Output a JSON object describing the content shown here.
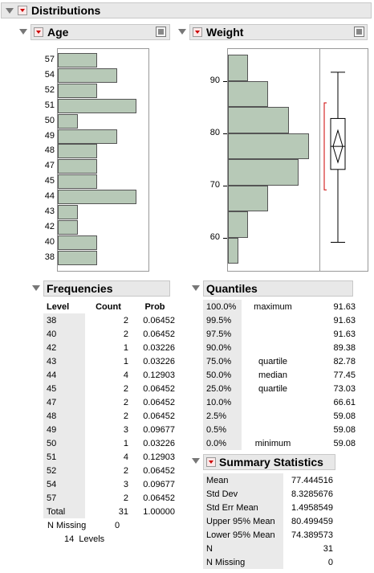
{
  "top_title": "Distributions",
  "age": {
    "title": "Age",
    "ticks": [
      "57",
      "54",
      "52",
      "51",
      "50",
      "49",
      "48",
      "47",
      "45",
      "44",
      "43",
      "42",
      "40",
      "38"
    ],
    "chart_data": {
      "type": "bar",
      "orientation": "horizontal",
      "categories": [
        "57",
        "54",
        "52",
        "51",
        "50",
        "49",
        "48",
        "47",
        "45",
        "44",
        "43",
        "42",
        "40",
        "38"
      ],
      "values": [
        2,
        3,
        2,
        4,
        1,
        3,
        2,
        2,
        2,
        4,
        1,
        1,
        2,
        2
      ]
    }
  },
  "weight": {
    "title": "Weight",
    "ticks": [
      "90",
      "80",
      "70",
      "60"
    ],
    "chart_data": {
      "type": "bar",
      "orientation": "horizontal",
      "bins": [
        [
          55,
          60
        ],
        [
          60,
          65
        ],
        [
          65,
          70
        ],
        [
          70,
          75
        ],
        [
          75,
          80
        ],
        [
          80,
          85
        ],
        [
          85,
          90
        ],
        [
          90,
          95
        ]
      ],
      "values": [
        1,
        2,
        4,
        7,
        8,
        6,
        4,
        2
      ],
      "ylim": [
        55,
        95
      ],
      "boxplot": {
        "min": 59.08,
        "q1": 73.03,
        "median": 77.45,
        "q3": 82.78,
        "max": 91.63,
        "mean": 77.444516,
        "ci_low": 74.389573,
        "ci_high": 80.499459
      }
    }
  },
  "frequencies": {
    "title": "Frequencies",
    "headers": [
      "Level",
      "Count",
      "Prob"
    ],
    "rows": [
      [
        "38",
        "2",
        "0.06452"
      ],
      [
        "40",
        "2",
        "0.06452"
      ],
      [
        "42",
        "1",
        "0.03226"
      ],
      [
        "43",
        "1",
        "0.03226"
      ],
      [
        "44",
        "4",
        "0.12903"
      ],
      [
        "45",
        "2",
        "0.06452"
      ],
      [
        "47",
        "2",
        "0.06452"
      ],
      [
        "48",
        "2",
        "0.06452"
      ],
      [
        "49",
        "3",
        "0.09677"
      ],
      [
        "50",
        "1",
        "0.03226"
      ],
      [
        "51",
        "4",
        "0.12903"
      ],
      [
        "52",
        "2",
        "0.06452"
      ],
      [
        "54",
        "3",
        "0.09677"
      ],
      [
        "57",
        "2",
        "0.06452"
      ],
      [
        "Total",
        "31",
        "1.00000"
      ]
    ],
    "n_missing_label": "N Missing",
    "n_missing_value": "0",
    "levels_text": "14  Levels"
  },
  "quantiles": {
    "title": "Quantiles",
    "rows": [
      [
        "100.0%",
        "maximum",
        "91.63"
      ],
      [
        "99.5%",
        "",
        "91.63"
      ],
      [
        "97.5%",
        "",
        "91.63"
      ],
      [
        "90.0%",
        "",
        "89.38"
      ],
      [
        "75.0%",
        "quartile",
        "82.78"
      ],
      [
        "50.0%",
        "median",
        "77.45"
      ],
      [
        "25.0%",
        "quartile",
        "73.03"
      ],
      [
        "10.0%",
        "",
        "66.61"
      ],
      [
        "2.5%",
        "",
        "59.08"
      ],
      [
        "0.5%",
        "",
        "59.08"
      ],
      [
        "0.0%",
        "minimum",
        "59.08"
      ]
    ]
  },
  "summary": {
    "title": "Summary Statistics",
    "rows": [
      [
        "Mean",
        "77.444516"
      ],
      [
        "Std Dev",
        "8.3285676"
      ],
      [
        "Std Err Mean",
        "1.4958549"
      ],
      [
        "Upper 95% Mean",
        "80.499459"
      ],
      [
        "Lower 95% Mean",
        "74.389573"
      ],
      [
        "N",
        "31"
      ],
      [
        "N Missing",
        "0"
      ]
    ]
  }
}
